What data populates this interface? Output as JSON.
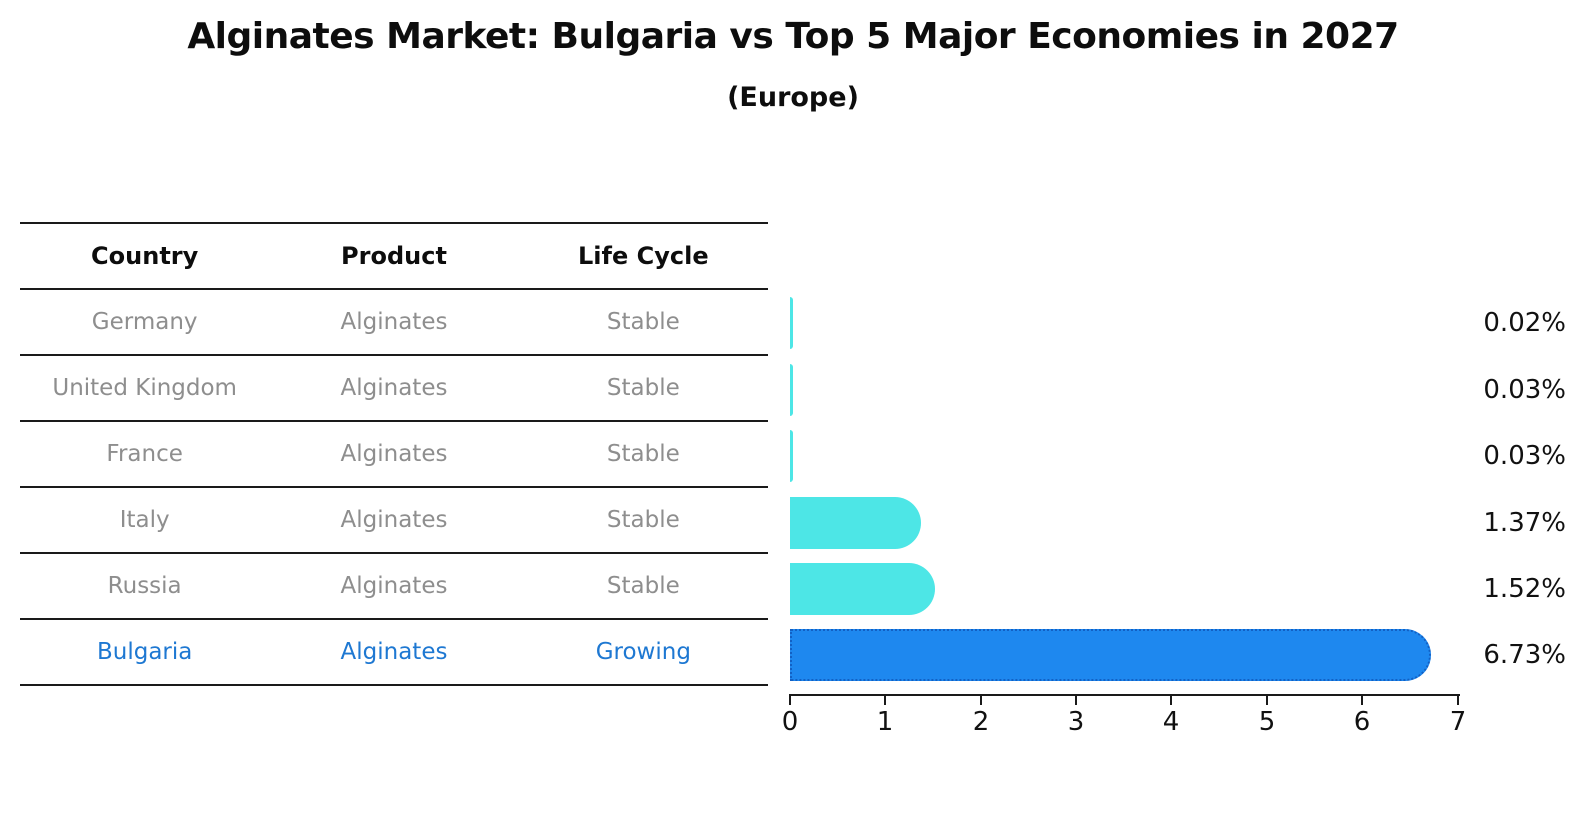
{
  "title": "Alginates Market: Bulgaria vs Top 5 Major Economies in 2027",
  "subtitle": "(Europe)",
  "table": {
    "headers": [
      "Country",
      "Product",
      "Life Cycle"
    ],
    "rows": [
      {
        "country": "Germany",
        "product": "Alginates",
        "life_cycle": "Stable"
      },
      {
        "country": "United Kingdom",
        "product": "Alginates",
        "life_cycle": "Stable"
      },
      {
        "country": "France",
        "product": "Alginates",
        "life_cycle": "Stable"
      },
      {
        "country": "Italy",
        "product": "Alginates",
        "life_cycle": "Stable"
      },
      {
        "country": "Russia",
        "product": "Alginates",
        "life_cycle": "Stable"
      },
      {
        "country": "Bulgaria",
        "product": "Alginates",
        "life_cycle": "Growing"
      }
    ]
  },
  "chart_data": {
    "type": "bar",
    "orientation": "horizontal",
    "title": "Alginates Market: Bulgaria vs Top 5 Major Economies in 2027",
    "subtitle": "(Europe)",
    "categories": [
      "Germany",
      "United Kingdom",
      "France",
      "Italy",
      "Russia",
      "Bulgaria"
    ],
    "values": [
      0.02,
      0.03,
      0.03,
      1.37,
      1.52,
      6.73
    ],
    "value_labels": [
      "0.02%",
      "0.03%",
      "0.03%",
      "1.37%",
      "1.52%",
      "6.73%"
    ],
    "x_ticks": [
      "0",
      "1",
      "2",
      "3",
      "4",
      "5",
      "6",
      "7"
    ],
    "xlim": [
      0,
      7
    ],
    "grid": false,
    "legend": false,
    "highlight_index": 5,
    "highlight_category": "Bulgaria"
  },
  "colors": {
    "background": "#ffffff",
    "title_text": "#0d0d0d",
    "table_line": "#1a1a1a",
    "row_text": "#8e8e8e",
    "highlight_text": "#1e78d2",
    "bar_default": "#4de6e6",
    "bar_highlight": "#1e88ef",
    "bar_highlight_border": "#1260c4",
    "axis": "#1a1a1a",
    "label_text": "#111111"
  }
}
